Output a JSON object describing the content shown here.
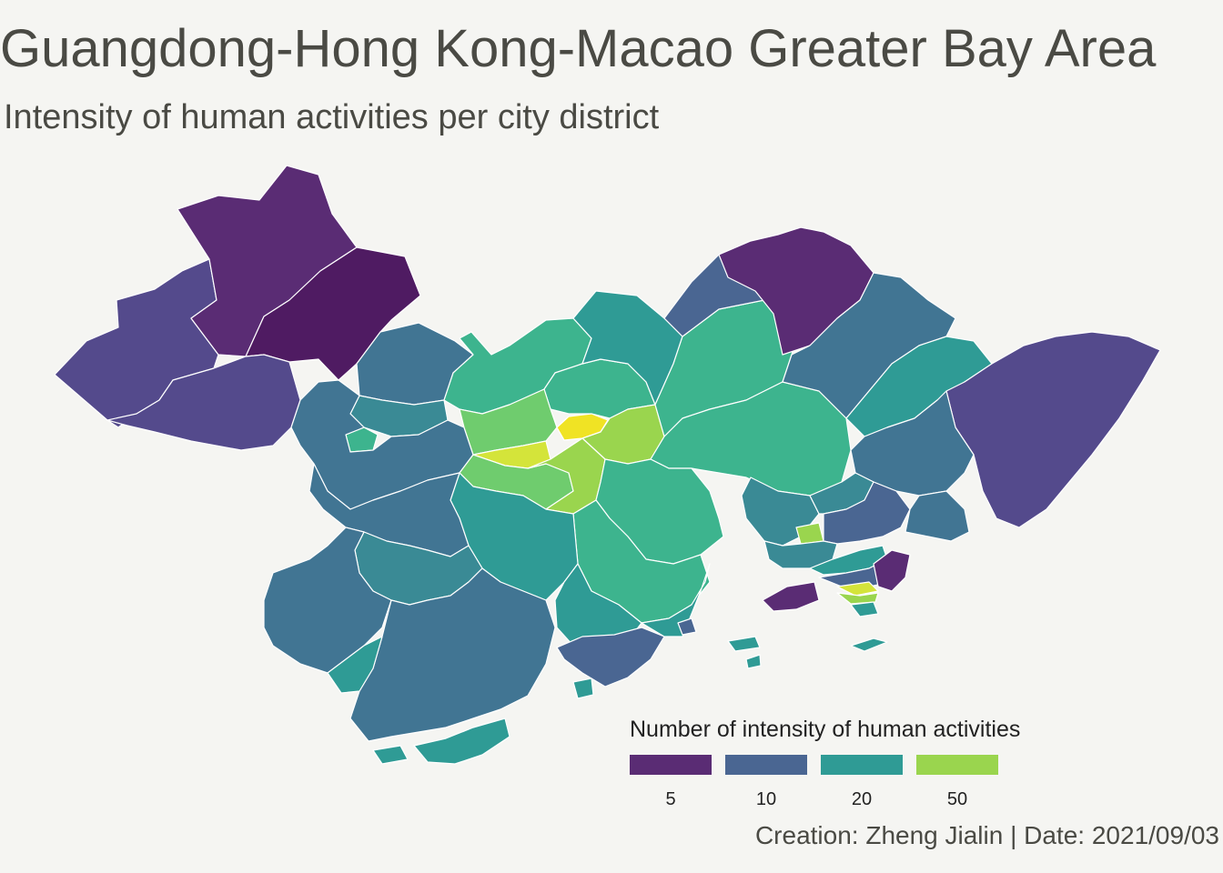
{
  "title": "Guangdong-Hong Kong-Macao Greater Bay Area",
  "subtitle": "Intensity of human activities per city district",
  "caption": "Creation: Zheng Jialin | Date: 2021/09/03",
  "legend": {
    "title": "Number of intensity of human activities",
    "items": [
      {
        "label": "5",
        "color": "#5a2c74"
      },
      {
        "label": "10",
        "color": "#4a6692"
      },
      {
        "label": "20",
        "color": "#2f9b95"
      },
      {
        "label": "50",
        "color": "#9ad54e"
      }
    ]
  },
  "colors": {
    "background": "#f5f5f2",
    "border": "#ffffff",
    "scale": [
      "#4f1b62",
      "#5a2c74",
      "#544a8c",
      "#4a6692",
      "#417593",
      "#3a8a95",
      "#2f9b95",
      "#3db48e",
      "#6fcc6e",
      "#9ad54e",
      "#d4e43a",
      "#f0e324"
    ]
  }
}
